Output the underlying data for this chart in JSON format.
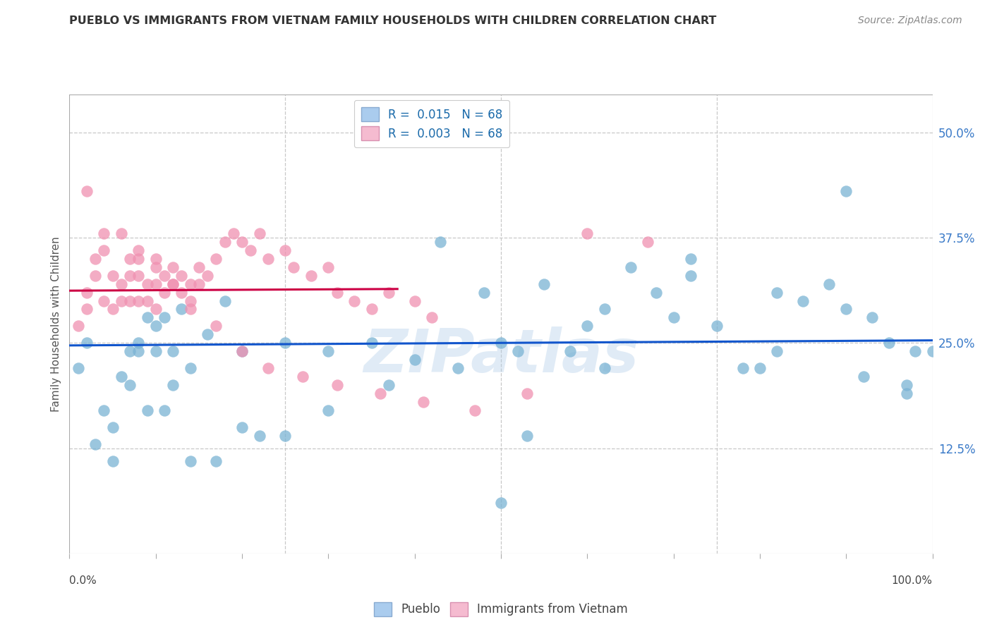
{
  "title": "PUEBLO VS IMMIGRANTS FROM VIETNAM FAMILY HOUSEHOLDS WITH CHILDREN CORRELATION CHART",
  "source": "Source: ZipAtlas.com",
  "ylabel": "Family Households with Children",
  "ytick_values": [
    0.125,
    0.25,
    0.375,
    0.5
  ],
  "ytick_labels": [
    "12.5%",
    "25.0%",
    "37.5%",
    "50.0%"
  ],
  "xlim": [
    0.0,
    1.0
  ],
  "ylim": [
    0.0,
    0.545
  ],
  "pueblo_color": "#a8cce4",
  "vietnam_color": "#f5b8cc",
  "pueblo_dot_color": "#7ab3d4",
  "vietnam_dot_color": "#f090b0",
  "pueblo_line_color": "#1155cc",
  "vietnam_line_color": "#cc0044",
  "pueblo_R": "0.015",
  "pueblo_N": "68",
  "vietnam_R": "0.003",
  "vietnam_N": "68",
  "watermark": "ZIPatlas",
  "background_color": "#ffffff",
  "grid_color": "#c8c8c8",
  "legend_blue_color": "#aaccee",
  "legend_pink_color": "#f5bbd0",
  "legend_text_color": "#1a6aaa",
  "pueblo_x": [
    0.01,
    0.02,
    0.04,
    0.05,
    0.06,
    0.07,
    0.08,
    0.08,
    0.09,
    0.1,
    0.1,
    0.11,
    0.12,
    0.12,
    0.13,
    0.14,
    0.16,
    0.18,
    0.2,
    0.22,
    0.25,
    0.3,
    0.35,
    0.4,
    0.43,
    0.48,
    0.5,
    0.52,
    0.55,
    0.58,
    0.6,
    0.62,
    0.65,
    0.68,
    0.7,
    0.72,
    0.75,
    0.78,
    0.8,
    0.82,
    0.85,
    0.88,
    0.9,
    0.92,
    0.93,
    0.95,
    0.97,
    0.98,
    1.0,
    0.03,
    0.05,
    0.07,
    0.09,
    0.11,
    0.14,
    0.17,
    0.2,
    0.25,
    0.3,
    0.37,
    0.45,
    0.53,
    0.62,
    0.72,
    0.82,
    0.9,
    0.97,
    0.5
  ],
  "pueblo_y": [
    0.22,
    0.25,
    0.17,
    0.11,
    0.21,
    0.24,
    0.24,
    0.25,
    0.28,
    0.27,
    0.24,
    0.28,
    0.24,
    0.2,
    0.29,
    0.22,
    0.26,
    0.3,
    0.24,
    0.14,
    0.25,
    0.24,
    0.25,
    0.23,
    0.37,
    0.31,
    0.25,
    0.24,
    0.32,
    0.24,
    0.27,
    0.29,
    0.34,
    0.31,
    0.28,
    0.35,
    0.27,
    0.22,
    0.22,
    0.31,
    0.3,
    0.32,
    0.29,
    0.21,
    0.28,
    0.25,
    0.2,
    0.24,
    0.24,
    0.13,
    0.15,
    0.2,
    0.17,
    0.17,
    0.11,
    0.11,
    0.15,
    0.14,
    0.17,
    0.2,
    0.22,
    0.14,
    0.22,
    0.33,
    0.24,
    0.43,
    0.19,
    0.06
  ],
  "vietnam_x": [
    0.01,
    0.02,
    0.02,
    0.03,
    0.03,
    0.04,
    0.04,
    0.05,
    0.05,
    0.06,
    0.06,
    0.07,
    0.07,
    0.07,
    0.08,
    0.08,
    0.08,
    0.09,
    0.09,
    0.1,
    0.1,
    0.1,
    0.11,
    0.11,
    0.12,
    0.12,
    0.13,
    0.13,
    0.14,
    0.14,
    0.15,
    0.15,
    0.16,
    0.17,
    0.18,
    0.19,
    0.2,
    0.21,
    0.22,
    0.23,
    0.25,
    0.26,
    0.28,
    0.3,
    0.31,
    0.33,
    0.35,
    0.37,
    0.4,
    0.42,
    0.02,
    0.04,
    0.06,
    0.08,
    0.1,
    0.12,
    0.14,
    0.17,
    0.2,
    0.23,
    0.27,
    0.31,
    0.36,
    0.41,
    0.47,
    0.53,
    0.6,
    0.67
  ],
  "vietnam_y": [
    0.27,
    0.31,
    0.29,
    0.35,
    0.33,
    0.36,
    0.3,
    0.33,
    0.29,
    0.32,
    0.3,
    0.35,
    0.33,
    0.3,
    0.35,
    0.33,
    0.3,
    0.32,
    0.3,
    0.34,
    0.32,
    0.29,
    0.33,
    0.31,
    0.34,
    0.32,
    0.33,
    0.31,
    0.32,
    0.3,
    0.34,
    0.32,
    0.33,
    0.35,
    0.37,
    0.38,
    0.37,
    0.36,
    0.38,
    0.35,
    0.36,
    0.34,
    0.33,
    0.34,
    0.31,
    0.3,
    0.29,
    0.31,
    0.3,
    0.28,
    0.43,
    0.38,
    0.38,
    0.36,
    0.35,
    0.32,
    0.29,
    0.27,
    0.24,
    0.22,
    0.21,
    0.2,
    0.19,
    0.18,
    0.17,
    0.19,
    0.38,
    0.37
  ],
  "pueblo_trend_x": [
    0.0,
    1.0
  ],
  "pueblo_trend_y": [
    0.247,
    0.253
  ],
  "vietnam_trend_x": [
    0.0,
    0.38
  ],
  "vietnam_trend_y": [
    0.312,
    0.314
  ]
}
